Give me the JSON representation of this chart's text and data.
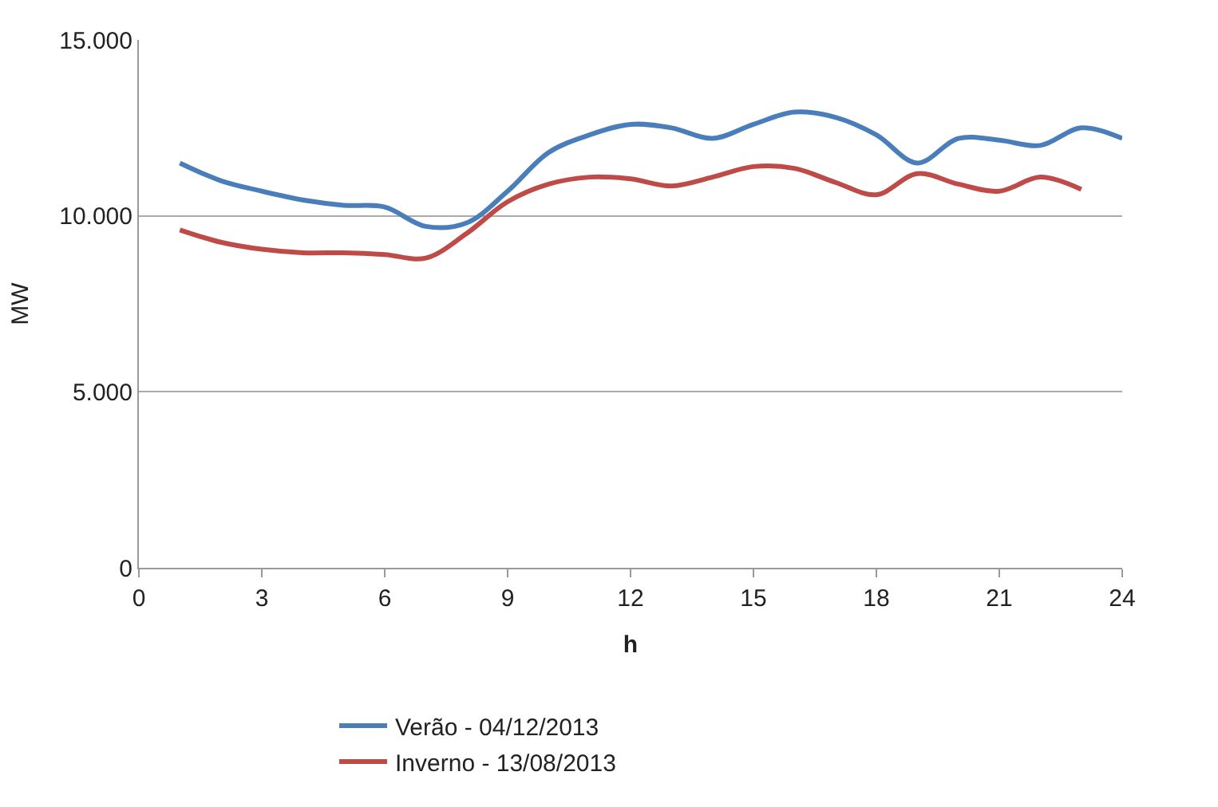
{
  "chart_data": {
    "type": "line",
    "xlabel": "h",
    "ylabel": "MW",
    "x": [
      1,
      2,
      3,
      4,
      5,
      6,
      7,
      8,
      9,
      10,
      11,
      12,
      13,
      14,
      15,
      16,
      17,
      18,
      19,
      20,
      21,
      22,
      23,
      24
    ],
    "series": [
      {
        "name": "Verão - 04/12/2013",
        "color": "#4a7ebb",
        "values": [
          11500,
          11000,
          10700,
          10450,
          10300,
          10250,
          9700,
          9800,
          10700,
          11800,
          12300,
          12600,
          12500,
          12200,
          12600,
          12950,
          12800,
          12300,
          11500,
          12200,
          12150,
          12000,
          12500,
          12200
        ]
      },
      {
        "name": "Inverno - 13/08/2013",
        "color": "#be4b48",
        "values": [
          9600,
          9250,
          9050,
          8950,
          8950,
          8900,
          8800,
          9500,
          10400,
          10900,
          11100,
          11050,
          10850,
          11100,
          11400,
          11350,
          10950,
          10600,
          11200,
          10900,
          10700,
          11100,
          10750,
          null
        ]
      }
    ],
    "xlim": [
      0,
      24
    ],
    "xticks": [
      0,
      3,
      6,
      9,
      12,
      15,
      18,
      21,
      24
    ],
    "ylim": [
      0,
      15000
    ],
    "yticks": [
      {
        "value": 0,
        "label": "0"
      },
      {
        "value": 5000,
        "label": "5.000"
      },
      {
        "value": 10000,
        "label": "10.000"
      },
      {
        "value": 15000,
        "label": "15.000"
      }
    ],
    "grid": "y",
    "legend": "bottom",
    "marker": "none",
    "line_style": "solid"
  }
}
